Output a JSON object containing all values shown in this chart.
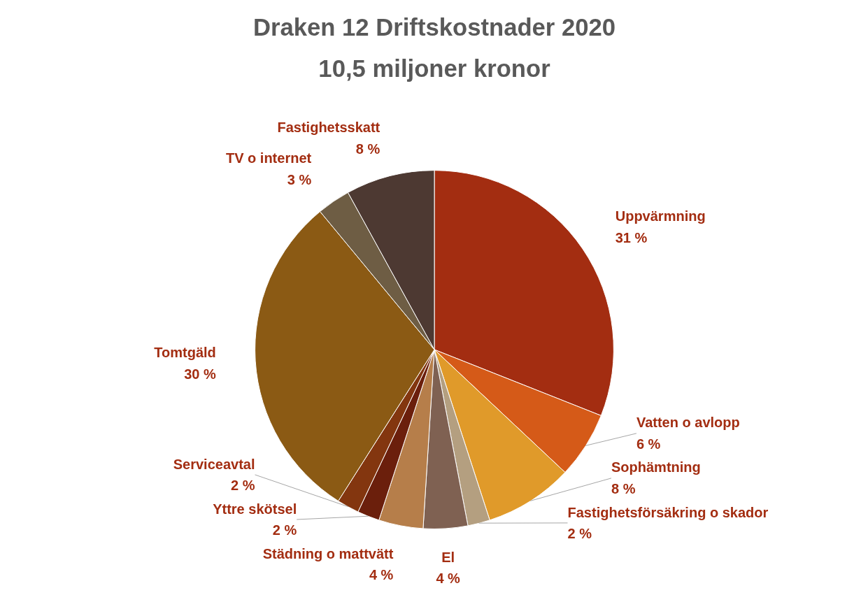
{
  "chart_data": {
    "type": "pie",
    "title": "Draken 12 Driftskostnader 2020",
    "subtitle": "10,5 miljoner kronor",
    "categories": [
      "Uppvärmning",
      "Vatten o avlopp",
      "Sophämtning",
      "Fastighetsförsäkring o skador",
      "El",
      "Städning o mattvätt",
      "Yttre skötsel",
      "Serviceavtal",
      "Tomtgäld",
      "TV o internet",
      "Fastighetsskatt"
    ],
    "values": [
      31,
      6,
      8,
      2,
      4,
      4,
      2,
      2,
      30,
      3,
      8
    ],
    "value_labels": [
      "31 %",
      "6 %",
      "8 %",
      "2 %",
      "4 %",
      "4 %",
      "2 %",
      "2 %",
      "30 %",
      "3 %",
      "8 %"
    ],
    "colors": [
      "#a32d11",
      "#d55a18",
      "#e09a2a",
      "#b49f80",
      "#7f6152",
      "#b67e4a",
      "#6b1f0c",
      "#83360f",
      "#8b5a14",
      "#6e5d44",
      "#4d3932"
    ],
    "legend": false
  }
}
